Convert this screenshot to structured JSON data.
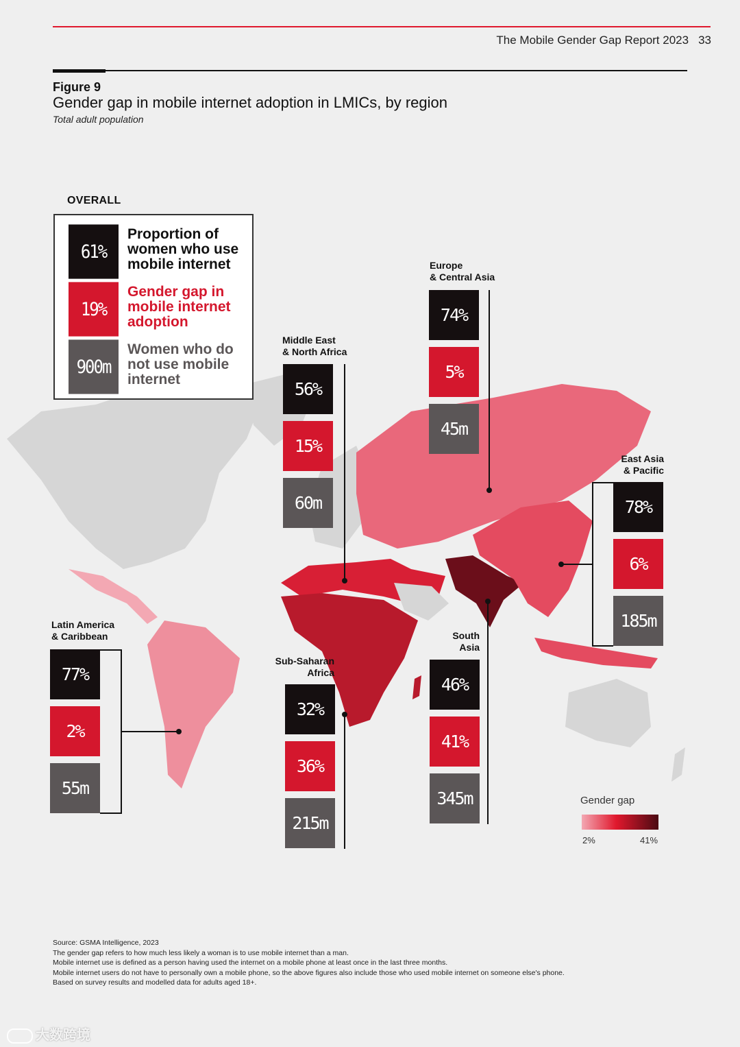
{
  "header": {
    "report_title": "The Mobile Gender Gap Report 2023",
    "page_number": "33",
    "accent_color": "#e0182d"
  },
  "figure": {
    "label": "Figure 9",
    "title": "Gender gap in mobile internet adoption in LMICs, by region",
    "subtitle": "Total adult population"
  },
  "overall": {
    "heading": "OVERALL",
    "items": [
      {
        "value": "61%",
        "label": "Proportion of women who use mobile internet",
        "color": "#150f10"
      },
      {
        "value": "19%",
        "label": "Gender gap in mobile internet adoption",
        "color": "#d4172d"
      },
      {
        "value": "900m",
        "label": "Women who do not use mobile internet",
        "color": "#5b5657"
      }
    ]
  },
  "regions": {
    "eca": {
      "name_line1": "Europe",
      "name_line2": "& Central Asia",
      "women_use": "74%",
      "gender_gap": "5%",
      "women_not_use": "45m"
    },
    "mena": {
      "name_line1": "Middle East",
      "name_line2": "& North Africa",
      "women_use": "56%",
      "gender_gap": "15%",
      "women_not_use": "60m"
    },
    "eap": {
      "name_line1": "East Asia",
      "name_line2": "& Pacific",
      "women_use": "78%",
      "gender_gap": "6%",
      "women_not_use": "185m"
    },
    "lac": {
      "name_line1": "Latin America",
      "name_line2": "& Caribbean",
      "women_use": "77%",
      "gender_gap": "2%",
      "women_not_use": "55m"
    },
    "ssa": {
      "name_line1": "Sub-Saharan",
      "name_line2": "Africa",
      "women_use": "32%",
      "gender_gap": "36%",
      "women_not_use": "215m"
    },
    "sa": {
      "name_line1": "South",
      "name_line2": "Asia",
      "women_use": "46%",
      "gender_gap": "41%",
      "women_not_use": "345m"
    }
  },
  "legend": {
    "title": "Gender gap",
    "min": "2%",
    "max": "41%",
    "colors": [
      "#f3a8b3",
      "#e0182d",
      "#4a0a12"
    ]
  },
  "notes": [
    "Source: GSMA Intelligence, 2023",
    "The gender gap refers to how much less likely a woman is to use mobile internet than a man.",
    "Mobile internet use is defined as a person having used the internet on a mobile phone at least once in the last three months.",
    "Mobile internet users do not have to personally own a mobile phone, so the above figures also include those who used mobile internet on someone else's phone.",
    "Based on survey results and modelled data for adults aged 18+."
  ],
  "watermark": "大数跨境"
}
